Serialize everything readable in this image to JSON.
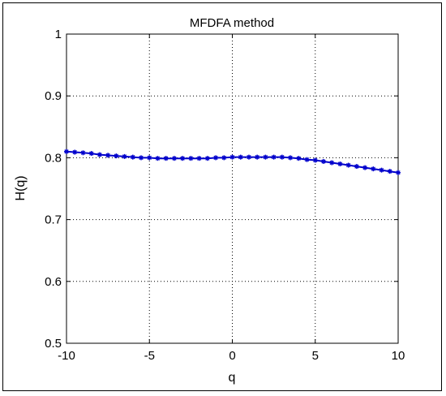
{
  "chart_data": {
    "type": "line",
    "title": "MFDFA method",
    "xlabel": "q",
    "ylabel": "H(q)",
    "xlim": [
      -10,
      10
    ],
    "ylim": [
      0.5,
      1
    ],
    "xticks": [
      -10,
      -5,
      0,
      5,
      10
    ],
    "xtick_labels": [
      "-10",
      "-5",
      "0",
      "5",
      "10"
    ],
    "yticks": [
      0.5,
      0.6,
      0.7,
      0.8,
      0.9,
      1.0
    ],
    "ytick_labels": [
      "0.5",
      "0.6",
      "0.7",
      "0.8",
      "0.9",
      "1"
    ],
    "grid": true,
    "marker": "*",
    "line_color": "#0000cc",
    "series": [
      {
        "x": [
          -10,
          -9.5,
          -9,
          -8.5,
          -8,
          -7.5,
          -7,
          -6.5,
          -6,
          -5.5,
          -5,
          -4.5,
          -4,
          -3.5,
          -3,
          -2.5,
          -2,
          -1.5,
          -1,
          -0.5,
          0,
          0.5,
          1,
          1.5,
          2,
          2.5,
          3,
          3.5,
          4,
          4.5,
          5,
          5.5,
          6,
          6.5,
          7,
          7.5,
          8,
          8.5,
          9,
          9.5,
          10
        ],
        "y": [
          0.81,
          0.809,
          0.808,
          0.807,
          0.805,
          0.804,
          0.803,
          0.802,
          0.801,
          0.8,
          0.8,
          0.799,
          0.799,
          0.799,
          0.799,
          0.799,
          0.799,
          0.799,
          0.8,
          0.8,
          0.801,
          0.801,
          0.801,
          0.801,
          0.801,
          0.801,
          0.801,
          0.8,
          0.799,
          0.797,
          0.796,
          0.794,
          0.792,
          0.79,
          0.788,
          0.786,
          0.784,
          0.782,
          0.78,
          0.778,
          0.776
        ]
      }
    ]
  }
}
